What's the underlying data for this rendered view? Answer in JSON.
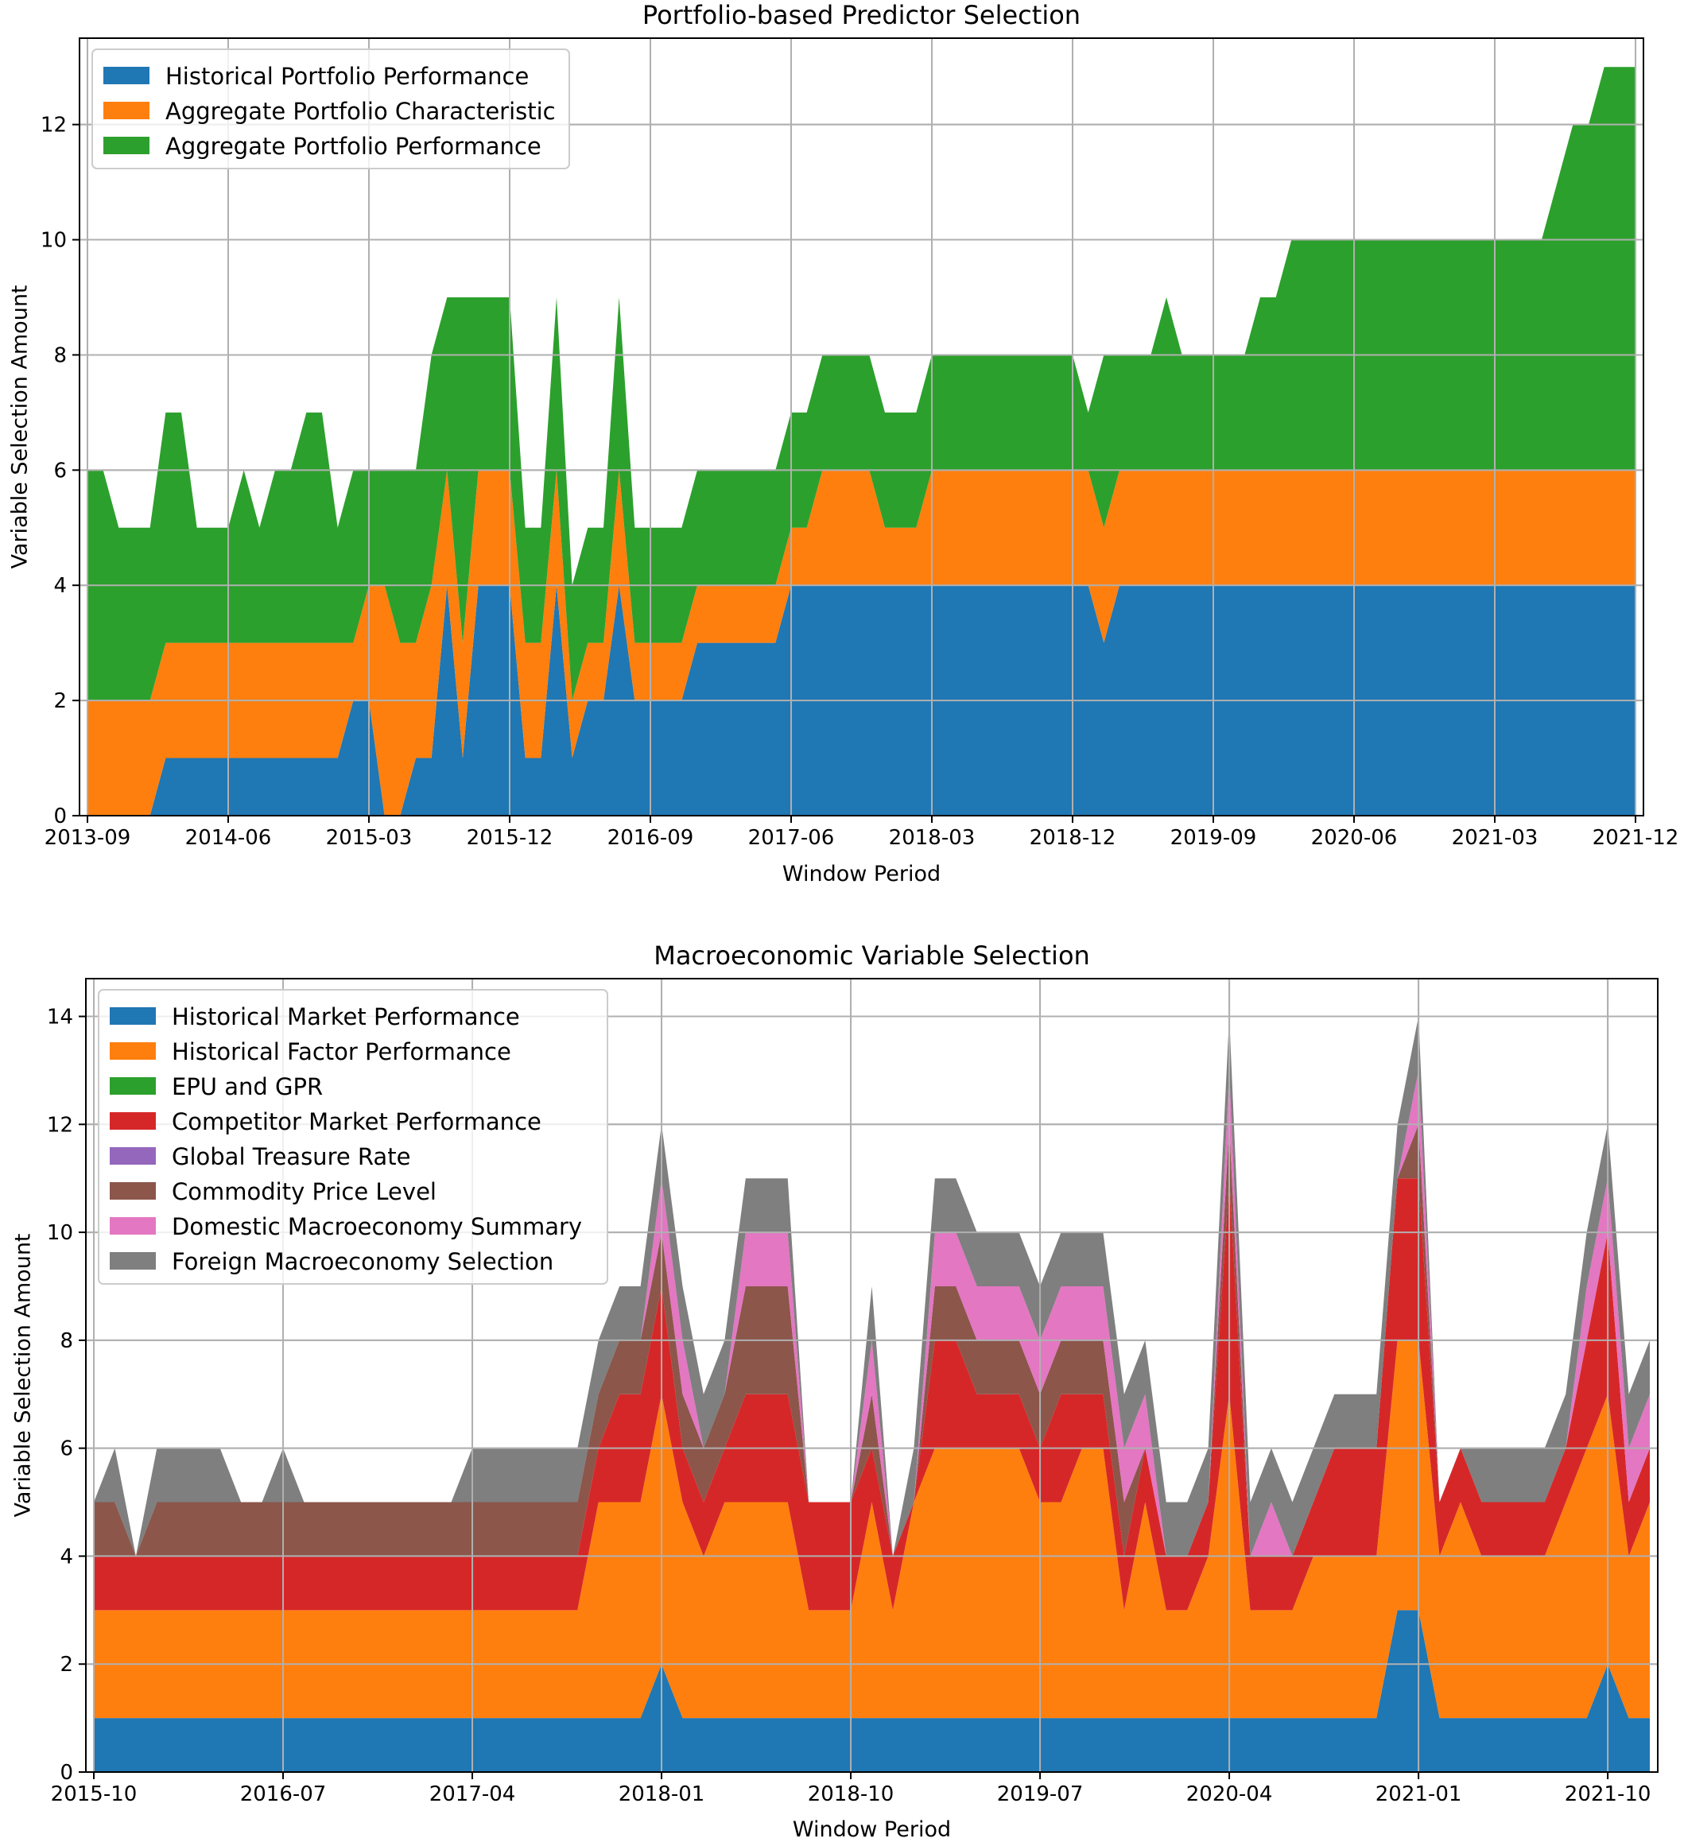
{
  "chart_data": [
    {
      "type": "area",
      "stacked": true,
      "title": "Portfolio-based Predictor Selection",
      "xlabel": "Window Period",
      "ylabel": "Variable Selection Amount",
      "x_start": "2013-09",
      "x_ticks": [
        "2013-09",
        "2014-06",
        "2015-03",
        "2015-12",
        "2016-09",
        "2017-06",
        "2018-03",
        "2018-12",
        "2019-09",
        "2020-06",
        "2021-03",
        "2021-12"
      ],
      "ylim": [
        0,
        13.5
      ],
      "y_ticks": [
        0,
        2,
        4,
        6,
        8,
        10,
        12
      ],
      "grid": true,
      "legend": "top-left",
      "x": [
        "2013-09",
        "2013-10",
        "2013-11",
        "2013-12",
        "2014-01",
        "2014-02",
        "2014-03",
        "2014-04",
        "2014-05",
        "2014-06",
        "2014-07",
        "2014-08",
        "2014-09",
        "2014-10",
        "2014-11",
        "2014-12",
        "2015-01",
        "2015-02",
        "2015-03",
        "2015-04",
        "2015-05",
        "2015-06",
        "2015-07",
        "2015-08",
        "2015-09",
        "2015-10",
        "2015-11",
        "2015-12",
        "2016-01",
        "2016-02",
        "2016-03",
        "2016-04",
        "2016-05",
        "2016-06",
        "2016-07",
        "2016-08",
        "2016-09",
        "2016-10",
        "2016-11",
        "2016-12",
        "2017-01",
        "2017-02",
        "2017-03",
        "2017-04",
        "2017-05",
        "2017-06",
        "2017-07",
        "2017-08",
        "2017-09",
        "2017-10",
        "2017-11",
        "2017-12",
        "2018-01",
        "2018-02",
        "2018-03",
        "2018-04",
        "2018-05",
        "2018-06",
        "2018-07",
        "2018-08",
        "2018-09",
        "2018-10",
        "2018-11",
        "2018-12",
        "2019-01",
        "2019-02",
        "2019-03",
        "2019-04",
        "2019-05",
        "2019-06",
        "2019-07",
        "2019-08",
        "2019-09",
        "2019-10",
        "2019-11",
        "2019-12",
        "2020-01",
        "2020-02",
        "2020-03",
        "2020-04",
        "2020-05",
        "2020-06",
        "2020-07",
        "2020-08",
        "2020-09",
        "2020-10",
        "2020-11",
        "2020-12",
        "2021-01",
        "2021-02",
        "2021-03",
        "2021-04",
        "2021-05",
        "2021-06",
        "2021-07",
        "2021-08",
        "2021-09",
        "2021-10",
        "2021-11",
        "2021-12"
      ],
      "series": [
        {
          "name": "Historical Portfolio Performance",
          "color": "#1f77b4",
          "values": [
            0,
            0,
            0,
            0,
            0,
            1,
            1,
            1,
            1,
            1,
            1,
            1,
            1,
            1,
            1,
            1,
            1,
            2,
            2,
            0,
            0,
            1,
            1,
            4,
            1,
            4,
            4,
            4,
            1,
            1,
            4,
            1,
            2,
            2,
            4,
            2,
            2,
            2,
            2,
            3,
            3,
            3,
            3,
            3,
            3,
            4,
            4,
            4,
            4,
            4,
            4,
            4,
            4,
            4,
            4,
            4,
            4,
            4,
            4,
            4,
            4,
            4,
            4,
            4,
            4,
            3,
            4,
            4,
            4,
            4,
            4,
            4,
            4,
            4,
            4,
            4,
            4,
            4,
            4,
            4,
            4,
            4,
            4,
            4,
            4,
            4,
            4,
            4,
            4,
            4,
            4,
            4,
            4,
            4,
            4,
            4,
            4,
            4,
            4,
            4
          ]
        },
        {
          "name": "Aggregate Portfolio Characteristic",
          "color": "#ff7f0e",
          "values": [
            2,
            2,
            2,
            2,
            2,
            2,
            2,
            2,
            2,
            2,
            2,
            2,
            2,
            2,
            2,
            2,
            2,
            1,
            2,
            4,
            3,
            2,
            3,
            2,
            2,
            2,
            2,
            2,
            2,
            2,
            2,
            1,
            1,
            1,
            2,
            1,
            1,
            1,
            1,
            1,
            1,
            1,
            1,
            1,
            1,
            1,
            1,
            2,
            2,
            2,
            2,
            1,
            1,
            1,
            2,
            2,
            2,
            2,
            2,
            2,
            2,
            2,
            2,
            2,
            2,
            2,
            2,
            2,
            2,
            2,
            2,
            2,
            2,
            2,
            2,
            2,
            2,
            2,
            2,
            2,
            2,
            2,
            2,
            2,
            2,
            2,
            2,
            2,
            2,
            2,
            2,
            2,
            2,
            2,
            2,
            2,
            2,
            2,
            2,
            2
          ]
        },
        {
          "name": "Aggregate Portfolio Performance",
          "color": "#2ca02c",
          "values": [
            4,
            4,
            3,
            3,
            3,
            4,
            4,
            2,
            2,
            2,
            3,
            2,
            3,
            3,
            4,
            4,
            2,
            3,
            2,
            2,
            3,
            3,
            4,
            3,
            6,
            3,
            3,
            3,
            2,
            2,
            3,
            2,
            2,
            2,
            3,
            2,
            2,
            2,
            2,
            2,
            2,
            2,
            2,
            2,
            2,
            2,
            2,
            2,
            2,
            2,
            2,
            2,
            2,
            2,
            2,
            2,
            2,
            2,
            2,
            2,
            2,
            2,
            2,
            2,
            1,
            3,
            2,
            2,
            2,
            3,
            2,
            2,
            2,
            2,
            2,
            3,
            3,
            4,
            4,
            4,
            4,
            4,
            4,
            4,
            4,
            4,
            4,
            4,
            4,
            4,
            4,
            4,
            4,
            4,
            5,
            6,
            6,
            7,
            7,
            7
          ]
        }
      ]
    },
    {
      "type": "area",
      "stacked": true,
      "title": "Macroeconomic Variable Selection",
      "xlabel": "Window Period",
      "ylabel": "Variable Selection Amount",
      "x_start": "2015-10",
      "x_ticks": [
        "2015-10",
        "2016-07",
        "2017-04",
        "2018-01",
        "2018-10",
        "2019-07",
        "2020-04",
        "2021-01",
        "2021-10"
      ],
      "ylim": [
        0,
        14.7
      ],
      "y_ticks": [
        0,
        2,
        4,
        6,
        8,
        10,
        12,
        14
      ],
      "grid": true,
      "legend": "top-left",
      "x": [
        "2015-10",
        "2015-11",
        "2015-12",
        "2016-01",
        "2016-02",
        "2016-03",
        "2016-04",
        "2016-05",
        "2016-06",
        "2016-07",
        "2016-08",
        "2016-09",
        "2016-10",
        "2016-11",
        "2016-12",
        "2017-01",
        "2017-02",
        "2017-03",
        "2017-04",
        "2017-05",
        "2017-06",
        "2017-07",
        "2017-08",
        "2017-09",
        "2017-10",
        "2017-11",
        "2017-12",
        "2018-01",
        "2018-02",
        "2018-03",
        "2018-04",
        "2018-05",
        "2018-06",
        "2018-07",
        "2018-08",
        "2018-09",
        "2018-10",
        "2018-11",
        "2018-12",
        "2019-01",
        "2019-02",
        "2019-03",
        "2019-04",
        "2019-05",
        "2019-06",
        "2019-07",
        "2019-08",
        "2019-09",
        "2019-10",
        "2019-11",
        "2019-12",
        "2020-01",
        "2020-02",
        "2020-03",
        "2020-04",
        "2020-05",
        "2020-06",
        "2020-07",
        "2020-08",
        "2020-09",
        "2020-10",
        "2020-11",
        "2020-12",
        "2021-01",
        "2021-02",
        "2021-03",
        "2021-04",
        "2021-05",
        "2021-06",
        "2021-07",
        "2021-08",
        "2021-09",
        "2021-10",
        "2021-11",
        "2021-12"
      ],
      "series": [
        {
          "name": "Historical Market Performance",
          "color": "#1f77b4",
          "values": [
            1,
            1,
            1,
            1,
            1,
            1,
            1,
            1,
            1,
            1,
            1,
            1,
            1,
            1,
            1,
            1,
            1,
            1,
            1,
            1,
            1,
            1,
            1,
            1,
            1,
            1,
            1,
            2,
            1,
            1,
            1,
            1,
            1,
            1,
            1,
            1,
            1,
            1,
            1,
            1,
            1,
            1,
            1,
            1,
            1,
            1,
            1,
            1,
            1,
            1,
            1,
            1,
            1,
            1,
            1,
            1,
            1,
            1,
            1,
            1,
            1,
            1,
            3,
            3,
            1,
            1,
            1,
            1,
            1,
            1,
            1,
            1,
            2,
            1,
            1
          ]
        },
        {
          "name": "Historical Factor Performance",
          "color": "#ff7f0e",
          "values": [
            2,
            2,
            2,
            2,
            2,
            2,
            2,
            2,
            2,
            2,
            2,
            2,
            2,
            2,
            2,
            2,
            2,
            2,
            2,
            2,
            2,
            2,
            2,
            2,
            4,
            4,
            4,
            5,
            4,
            3,
            4,
            4,
            4,
            4,
            2,
            2,
            2,
            4,
            2,
            4,
            5,
            5,
            5,
            5,
            5,
            4,
            4,
            5,
            5,
            2,
            4,
            2,
            2,
            3,
            6,
            2,
            2,
            2,
            3,
            3,
            3,
            3,
            5,
            5,
            3,
            4,
            3,
            3,
            3,
            3,
            4,
            5,
            5,
            3,
            4
          ]
        },
        {
          "name": "EPU and GPR",
          "color": "#2ca02c",
          "values": [
            0,
            0,
            0,
            0,
            0,
            0,
            0,
            0,
            0,
            0,
            0,
            0,
            0,
            0,
            0,
            0,
            0,
            0,
            0,
            0,
            0,
            0,
            0,
            0,
            0,
            0,
            0,
            0,
            0,
            0,
            0,
            0,
            0,
            0,
            0,
            0,
            0,
            0,
            0,
            0,
            0,
            0,
            0,
            0,
            0,
            0,
            0,
            0,
            0,
            0,
            0,
            0,
            0,
            0,
            0,
            0,
            0,
            0,
            0,
            0,
            0,
            0,
            0,
            0,
            0,
            0,
            0,
            0,
            0,
            0,
            0,
            0,
            0,
            0,
            0
          ]
        },
        {
          "name": "Competitor Market Performance",
          "color": "#d62728",
          "values": [
            1,
            1,
            1,
            1,
            1,
            1,
            1,
            1,
            1,
            1,
            1,
            1,
            1,
            1,
            1,
            1,
            1,
            1,
            1,
            1,
            1,
            1,
            1,
            1,
            1,
            2,
            2,
            2,
            1,
            1,
            1,
            2,
            2,
            2,
            2,
            2,
            2,
            1,
            1,
            0,
            2,
            2,
            1,
            1,
            1,
            1,
            2,
            1,
            1,
            1,
            1,
            1,
            1,
            1,
            4,
            1,
            1,
            1,
            1,
            2,
            2,
            2,
            3,
            3,
            1,
            1,
            1,
            1,
            1,
            1,
            1,
            2,
            3,
            1,
            1
          ]
        },
        {
          "name": "Global Treasure Rate",
          "color": "#9467bd",
          "values": [
            0,
            0,
            0,
            0,
            0,
            0,
            0,
            0,
            0,
            0,
            0,
            0,
            0,
            0,
            0,
            0,
            0,
            0,
            0,
            0,
            0,
            0,
            0,
            0,
            0,
            0,
            0,
            0,
            0,
            0,
            0,
            0,
            0,
            0,
            0,
            0,
            0,
            0,
            0,
            0,
            0,
            0,
            0,
            0,
            0,
            0,
            0,
            0,
            0,
            0,
            0,
            0,
            0,
            0,
            0,
            0,
            0,
            0,
            0,
            0,
            0,
            0,
            0,
            0,
            0,
            0,
            0,
            0,
            0,
            0,
            0,
            0,
            0,
            0,
            0
          ]
        },
        {
          "name": "Commodity Price Level",
          "color": "#8c564b",
          "values": [
            1,
            1,
            0,
            1,
            1,
            1,
            1,
            1,
            1,
            1,
            1,
            1,
            1,
            1,
            1,
            1,
            1,
            1,
            1,
            1,
            1,
            1,
            1,
            1,
            1,
            1,
            1,
            1,
            1,
            1,
            1,
            2,
            2,
            2,
            0,
            0,
            0,
            1,
            0,
            0,
            1,
            1,
            1,
            1,
            1,
            1,
            1,
            1,
            1,
            1,
            0,
            0,
            0,
            0,
            1,
            0,
            0,
            0,
            0,
            0,
            0,
            0,
            0,
            1,
            0,
            0,
            0,
            0,
            0,
            0,
            0,
            0,
            0,
            0,
            0
          ]
        },
        {
          "name": "Domestic Macroeconomy Summary",
          "color": "#e377c2",
          "values": [
            0,
            0,
            0,
            0,
            0,
            0,
            0,
            0,
            0,
            0,
            0,
            0,
            0,
            0,
            0,
            0,
            0,
            0,
            0,
            0,
            0,
            0,
            0,
            0,
            0,
            0,
            0,
            1,
            1,
            0,
            0,
            1,
            1,
            1,
            0,
            0,
            0,
            1,
            0,
            0,
            1,
            1,
            1,
            1,
            1,
            1,
            1,
            1,
            1,
            1,
            1,
            0,
            0,
            0,
            1,
            0,
            1,
            0,
            0,
            0,
            0,
            0,
            0,
            1,
            0,
            0,
            0,
            0,
            0,
            0,
            0,
            1,
            1,
            1,
            1
          ]
        },
        {
          "name": "Foreign Macroeconomy Selection",
          "color": "#7f7f7f",
          "values": [
            0,
            1,
            0,
            1,
            1,
            1,
            1,
            0,
            0,
            1,
            0,
            0,
            0,
            0,
            0,
            0,
            0,
            0,
            1,
            1,
            1,
            1,
            1,
            1,
            1,
            1,
            1,
            1,
            1,
            1,
            1,
            1,
            1,
            1,
            0,
            0,
            0,
            1,
            0,
            1,
            1,
            1,
            1,
            1,
            1,
            1,
            1,
            1,
            1,
            1,
            1,
            1,
            1,
            1,
            1,
            1,
            1,
            1,
            1,
            1,
            1,
            1,
            1,
            1,
            0,
            0,
            1,
            1,
            1,
            1,
            1,
            1,
            1,
            1,
            1
          ]
        }
      ]
    }
  ]
}
